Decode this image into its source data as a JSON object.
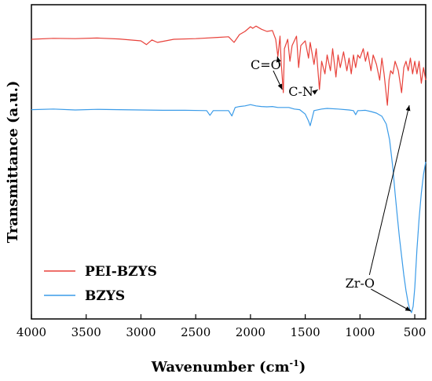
{
  "chart_data": {
    "type": "line",
    "xlabel": "Wavenumber (cm",
    "xlabel_sup": "-1",
    "xlabel_end": ")",
    "ylabel": "Transmittance (a.u.)",
    "xlim": [
      4000,
      400
    ],
    "ylim": [
      0,
      100
    ],
    "xticks": [
      4000,
      3500,
      3000,
      2500,
      2000,
      1500,
      1000,
      500
    ],
    "grid": false,
    "legend_position": "bottom-left",
    "series": [
      {
        "name": "PEI-BZYS",
        "color": "#e8413a",
        "points": [
          [
            4000,
            89
          ],
          [
            3800,
            89.3
          ],
          [
            3600,
            89.2
          ],
          [
            3400,
            89.4
          ],
          [
            3200,
            89.1
          ],
          [
            3000,
            88.5
          ],
          [
            2950,
            87.3
          ],
          [
            2900,
            88.8
          ],
          [
            2850,
            88
          ],
          [
            2700,
            89
          ],
          [
            2500,
            89.2
          ],
          [
            2300,
            89.6
          ],
          [
            2200,
            89.8
          ],
          [
            2150,
            88
          ],
          [
            2100,
            90.5
          ],
          [
            2050,
            91.5
          ],
          [
            2000,
            93
          ],
          [
            1980,
            92.5
          ],
          [
            1950,
            93.2
          ],
          [
            1900,
            92.2
          ],
          [
            1850,
            91.5
          ],
          [
            1800,
            91.8
          ],
          [
            1770,
            89
          ],
          [
            1750,
            83.5
          ],
          [
            1730,
            90
          ],
          [
            1720,
            82
          ],
          [
            1700,
            72
          ],
          [
            1690,
            86
          ],
          [
            1660,
            89
          ],
          [
            1640,
            82
          ],
          [
            1620,
            87
          ],
          [
            1580,
            90
          ],
          [
            1560,
            80
          ],
          [
            1540,
            87
          ],
          [
            1500,
            88.5
          ],
          [
            1470,
            83
          ],
          [
            1455,
            88
          ],
          [
            1420,
            81
          ],
          [
            1400,
            86
          ],
          [
            1370,
            73
          ],
          [
            1350,
            82
          ],
          [
            1320,
            78
          ],
          [
            1300,
            84
          ],
          [
            1270,
            79
          ],
          [
            1250,
            86
          ],
          [
            1220,
            77
          ],
          [
            1200,
            84
          ],
          [
            1180,
            80
          ],
          [
            1150,
            85
          ],
          [
            1120,
            79
          ],
          [
            1100,
            83
          ],
          [
            1080,
            78
          ],
          [
            1060,
            84
          ],
          [
            1040,
            80
          ],
          [
            1020,
            84
          ],
          [
            1000,
            83
          ],
          [
            970,
            86
          ],
          [
            950,
            82
          ],
          [
            930,
            85
          ],
          [
            900,
            79
          ],
          [
            880,
            84
          ],
          [
            850,
            81
          ],
          [
            820,
            76
          ],
          [
            800,
            83
          ],
          [
            780,
            78
          ],
          [
            750,
            68
          ],
          [
            735,
            76
          ],
          [
            720,
            79
          ],
          [
            700,
            78
          ],
          [
            680,
            82
          ],
          [
            650,
            79
          ],
          [
            620,
            72
          ],
          [
            600,
            80
          ],
          [
            580,
            82
          ],
          [
            560,
            79
          ],
          [
            540,
            83
          ],
          [
            520,
            78
          ],
          [
            500,
            82
          ],
          [
            480,
            78
          ],
          [
            460,
            82
          ],
          [
            440,
            75
          ],
          [
            420,
            80
          ],
          [
            400,
            76
          ]
        ]
      },
      {
        "name": "BZYS",
        "color": "#3a9be8",
        "points": [
          [
            4000,
            66.6
          ],
          [
            3800,
            66.8
          ],
          [
            3600,
            66.5
          ],
          [
            3400,
            66.7
          ],
          [
            3200,
            66.6
          ],
          [
            3000,
            66.5
          ],
          [
            2800,
            66.4
          ],
          [
            2600,
            66.4
          ],
          [
            2400,
            66.3
          ],
          [
            2370,
            64.8
          ],
          [
            2340,
            66.3
          ],
          [
            2300,
            66.3
          ],
          [
            2200,
            66.3
          ],
          [
            2170,
            64.6
          ],
          [
            2140,
            67.3
          ],
          [
            2100,
            67.6
          ],
          [
            2050,
            67.8
          ],
          [
            2000,
            68.2
          ],
          [
            1950,
            67.8
          ],
          [
            1900,
            67.6
          ],
          [
            1850,
            67.5
          ],
          [
            1800,
            67.6
          ],
          [
            1750,
            67.3
          ],
          [
            1700,
            67.3
          ],
          [
            1650,
            67.3
          ],
          [
            1600,
            66.8
          ],
          [
            1550,
            66.6
          ],
          [
            1500,
            65.2
          ],
          [
            1470,
            63
          ],
          [
            1455,
            61.5
          ],
          [
            1440,
            63.5
          ],
          [
            1420,
            66.3
          ],
          [
            1350,
            66.8
          ],
          [
            1300,
            67
          ],
          [
            1200,
            66.8
          ],
          [
            1100,
            66.5
          ],
          [
            1060,
            66.3
          ],
          [
            1040,
            65
          ],
          [
            1020,
            66.3
          ],
          [
            1000,
            66.3
          ],
          [
            950,
            66.4
          ],
          [
            900,
            66
          ],
          [
            850,
            65.5
          ],
          [
            800,
            64.5
          ],
          [
            760,
            62
          ],
          [
            730,
            57
          ],
          [
            700,
            48
          ],
          [
            680,
            40
          ],
          [
            660,
            33
          ],
          [
            640,
            26
          ],
          [
            620,
            20
          ],
          [
            600,
            14
          ],
          [
            580,
            9
          ],
          [
            560,
            5
          ],
          [
            545,
            3
          ],
          [
            530,
            2
          ],
          [
            515,
            4
          ],
          [
            500,
            10
          ],
          [
            480,
            22
          ],
          [
            460,
            32
          ],
          [
            440,
            40
          ],
          [
            420,
            46
          ],
          [
            400,
            50
          ]
        ]
      }
    ],
    "annotations": [
      {
        "text": "C=O",
        "x": 1860,
        "y": 79.5,
        "arrow_to": [
          1755,
          83.5
        ]
      },
      {
        "text": "C=O",
        "x": 1860,
        "y": 79.5,
        "arrow_to": [
          1710,
          73
        ]
      },
      {
        "text": "C-N",
        "x": 1540,
        "y": 71,
        "arrow_to": [
          1385,
          73
        ]
      },
      {
        "text": "Zr-O",
        "x": 1000,
        "y": 10,
        "arrow_to": [
          535,
          2.5
        ]
      },
      {
        "text": "Zr-O",
        "x": 1000,
        "y": 10,
        "arrow_to": [
          550,
          68
        ]
      }
    ]
  }
}
